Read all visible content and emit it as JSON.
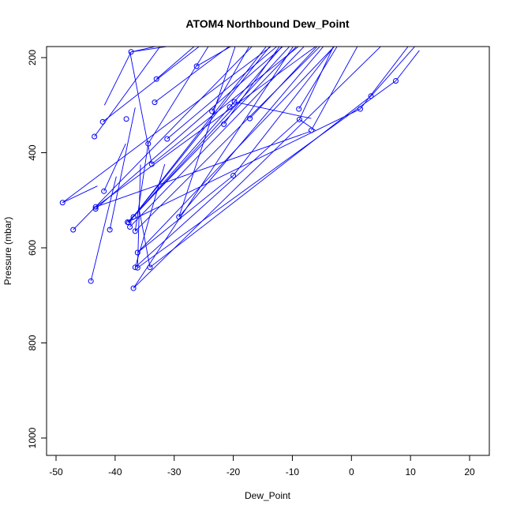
{
  "chart_data": {
    "type": "scatter",
    "title": "ATOM4 Northbound Dew_Point",
    "xlabel": "Dew_Point",
    "ylabel": "Pressure (mbar)",
    "xlim": [
      -50,
      20
    ],
    "ylim": [
      1000,
      200
    ],
    "y_reversed": true,
    "grid": false,
    "legend": "none",
    "x_ticks": [
      "-50",
      "-40",
      "-30",
      "-20",
      "-10",
      "0",
      "10",
      "20"
    ],
    "y_ticks": [
      "200",
      "400",
      "600",
      "800",
      "1000"
    ],
    "color": "#0000ff",
    "series": [
      {
        "points": [
          [
            -37.3,
            188
          ],
          [
            -42.1,
            335
          ],
          [
            -43.5,
            366
          ],
          [
            -38.1,
            329
          ],
          [
            -33.0,
            245
          ],
          [
            -26.2,
            218
          ],
          [
            -33.3,
            294
          ],
          [
            -31.2,
            371
          ],
          [
            -34.4,
            381
          ],
          [
            -33.8,
            424
          ],
          [
            -23.6,
            313
          ],
          [
            -20.6,
            304
          ],
          [
            -19.8,
            293
          ],
          [
            -21.6,
            340
          ],
          [
            -17.2,
            328
          ],
          [
            -8.8,
            330
          ],
          [
            -8.9,
            308
          ],
          [
            -6.8,
            353
          ],
          [
            1.5,
            308
          ],
          [
            3.3,
            281
          ],
          [
            7.5,
            249
          ],
          [
            -20.0,
            448
          ],
          [
            -48.9,
            505
          ],
          [
            -47.1,
            562
          ],
          [
            -41.9,
            481
          ],
          [
            -43.3,
            514
          ],
          [
            -43.3,
            518
          ],
          [
            -29.2,
            535
          ],
          [
            -36.9,
            535
          ],
          [
            -37.9,
            546
          ],
          [
            -37.7,
            547
          ],
          [
            -37.5,
            556
          ],
          [
            -36.6,
            565
          ],
          [
            -40.9,
            562
          ],
          [
            -36.2,
            610
          ],
          [
            -36.6,
            641
          ],
          [
            -36.2,
            642
          ],
          [
            -34.1,
            641
          ],
          [
            -44.1,
            670
          ],
          [
            -36.9,
            685
          ]
        ]
      }
    ],
    "segments": [
      [
        [
          -37.3,
          188
        ],
        [
          -30.7,
          170
        ]
      ],
      [
        [
          -37.3,
          188
        ],
        [
          -41.8,
          300
        ]
      ],
      [
        [
          -42.1,
          335
        ],
        [
          -25.1,
          170
        ]
      ],
      [
        [
          -43.5,
          366
        ],
        [
          -32.0,
          170
        ]
      ],
      [
        [
          -33.0,
          245
        ],
        [
          -26.0,
          170
        ]
      ],
      [
        [
          -26.2,
          218
        ],
        [
          -19.5,
          170
        ]
      ],
      [
        [
          -33.3,
          294
        ],
        [
          -20.0,
          170
        ]
      ],
      [
        [
          -31.2,
          371
        ],
        [
          -12.0,
          170
        ]
      ],
      [
        [
          -34.4,
          381
        ],
        [
          -23.9,
          170
        ]
      ],
      [
        [
          -33.8,
          424
        ],
        [
          -8.3,
          170
        ]
      ],
      [
        [
          -23.6,
          313
        ],
        [
          -17.0,
          170
        ]
      ],
      [
        [
          -20.6,
          304
        ],
        [
          -11.3,
          170
        ]
      ],
      [
        [
          -19.8,
          293
        ],
        [
          -6.8,
          328
        ]
      ],
      [
        [
          -21.6,
          340
        ],
        [
          -11.8,
          170
        ]
      ],
      [
        [
          -17.2,
          328
        ],
        [
          -5.3,
          170
        ]
      ],
      [
        [
          -8.8,
          330
        ],
        [
          -2.8,
          170
        ]
      ],
      [
        [
          -8.9,
          308
        ],
        [
          -2.1,
          170
        ]
      ],
      [
        [
          -6.8,
          353
        ],
        [
          1.3,
          170
        ]
      ],
      [
        [
          1.5,
          308
        ],
        [
          10.0,
          170
        ]
      ],
      [
        [
          3.3,
          281
        ],
        [
          11.2,
          170
        ]
      ],
      [
        [
          7.5,
          249
        ],
        [
          11.5,
          185
        ]
      ],
      [
        [
          -20.0,
          448
        ],
        [
          -2.5,
          170
        ]
      ],
      [
        [
          -48.9,
          505
        ],
        [
          -12.9,
          170
        ]
      ],
      [
        [
          -47.1,
          562
        ],
        [
          -16.3,
          170
        ]
      ],
      [
        [
          -41.9,
          481
        ],
        [
          -38.2,
          381
        ]
      ],
      [
        [
          -43.3,
          514
        ],
        [
          -5.3,
          170
        ]
      ],
      [
        [
          -43.3,
          518
        ],
        [
          -11.0,
          170
        ]
      ],
      [
        [
          -29.2,
          535
        ],
        [
          -19.5,
          170
        ]
      ],
      [
        [
          -36.9,
          535
        ],
        [
          -10.0,
          170
        ]
      ],
      [
        [
          -37.9,
          546
        ],
        [
          -8.8,
          170
        ]
      ],
      [
        [
          -37.7,
          547
        ],
        [
          -14.0,
          170
        ]
      ],
      [
        [
          -37.5,
          556
        ],
        [
          -7.5,
          170
        ]
      ],
      [
        [
          -36.6,
          565
        ],
        [
          -4.8,
          170
        ]
      ],
      [
        [
          -40.9,
          562
        ],
        [
          -36.6,
          305
        ]
      ],
      [
        [
          -36.2,
          610
        ],
        [
          -2.4,
          170
        ]
      ],
      [
        [
          -36.6,
          641
        ],
        [
          -31.6,
          424
        ]
      ],
      [
        [
          -36.2,
          642
        ],
        [
          -35.7,
          425
        ]
      ],
      [
        [
          -34.1,
          641
        ],
        [
          -35.9,
          521
        ]
      ],
      [
        [
          -44.1,
          670
        ],
        [
          -39.8,
          450
        ]
      ],
      [
        [
          -36.9,
          685
        ],
        [
          5.5,
          170
        ]
      ],
      [
        [
          -37.3,
          188
        ],
        [
          -27.6,
          170
        ]
      ],
      [
        [
          -33.8,
          424
        ],
        [
          -37.5,
          188
        ]
      ],
      [
        [
          -8.8,
          330
        ],
        [
          -6.1,
          353
        ]
      ],
      [
        [
          -48.9,
          505
        ],
        [
          -43.0,
          470
        ]
      ],
      [
        [
          -43.3,
          514
        ],
        [
          -6.9,
          355
        ]
      ],
      [
        [
          -36.6,
          641
        ],
        [
          -8.8,
          330
        ]
      ],
      [
        [
          -36.2,
          642
        ],
        [
          7.5,
          249
        ]
      ],
      [
        [
          -34.1,
          641
        ],
        [
          3.3,
          281
        ]
      ],
      [
        [
          -37.9,
          546
        ],
        [
          1.5,
          308
        ]
      ],
      [
        [
          -36.2,
          610
        ],
        [
          -20.0,
          448
        ]
      ],
      [
        [
          -36.9,
          535
        ],
        [
          -19.8,
          293
        ]
      ],
      [
        [
          -36.6,
          565
        ],
        [
          -34.4,
          381
        ]
      ],
      [
        [
          -37.7,
          547
        ],
        [
          -13.4,
          170
        ]
      ],
      [
        [
          -29.2,
          535
        ],
        [
          -4.3,
          170
        ]
      ],
      [
        [
          -36.9,
          685
        ],
        [
          -9.5,
          170
        ]
      ]
    ]
  }
}
